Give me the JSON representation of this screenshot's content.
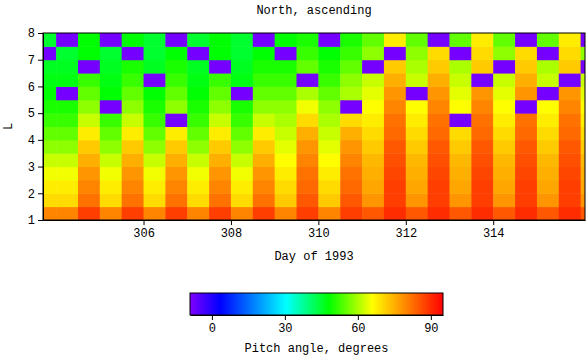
{
  "chart_data": {
    "type": "heatmap",
    "title": "North, ascending",
    "x_label": "Day of 1993",
    "y_label": "L",
    "xlim": [
      303.7,
      316.1
    ],
    "xticks": [
      306,
      308,
      310,
      312,
      314
    ],
    "ylim": [
      1,
      8
    ],
    "yticks": [
      1,
      2,
      3,
      4,
      5,
      6,
      7,
      8
    ],
    "x": [
      303.75,
      304.25,
      304.75,
      305.25,
      305.75,
      306.25,
      306.75,
      307.25,
      307.75,
      308.25,
      308.75,
      309.25,
      309.75,
      310.25,
      310.75,
      311.25,
      311.75,
      312.25,
      312.75,
      313.25,
      313.75,
      314.25,
      314.75,
      315.25,
      315.75,
      316.25
    ],
    "y": [
      1.25,
      1.75,
      2.25,
      2.75,
      3.25,
      3.75,
      4.25,
      4.75,
      5.25,
      5.75,
      6.25,
      6.75,
      7.25,
      7.75
    ],
    "z": [
      [
        80,
        80,
        88,
        80,
        88,
        80,
        88,
        80,
        88,
        80,
        88,
        80,
        88,
        80,
        88,
        85,
        90,
        85,
        90,
        85,
        90,
        85,
        90,
        85,
        90,
        85
      ],
      [
        70,
        70,
        82,
        70,
        82,
        70,
        82,
        70,
        82,
        70,
        82,
        72,
        85,
        72,
        85,
        78,
        88,
        78,
        88,
        78,
        88,
        78,
        88,
        78,
        88,
        78
      ],
      [
        68,
        68,
        80,
        68,
        80,
        68,
        80,
        68,
        80,
        68,
        80,
        70,
        83,
        70,
        83,
        76,
        88,
        76,
        88,
        76,
        88,
        76,
        88,
        76,
        88,
        76
      ],
      [
        65,
        65,
        78,
        65,
        78,
        65,
        78,
        65,
        78,
        65,
        78,
        68,
        82,
        68,
        82,
        75,
        87,
        75,
        87,
        75,
        87,
        75,
        87,
        75,
        87,
        75
      ],
      [
        62,
        62,
        75,
        62,
        75,
        62,
        75,
        62,
        75,
        62,
        75,
        66,
        80,
        66,
        80,
        74,
        86,
        74,
        86,
        74,
        86,
        74,
        86,
        74,
        86,
        74
      ],
      [
        58,
        58,
        72,
        58,
        72,
        58,
        72,
        58,
        72,
        58,
        72,
        64,
        78,
        64,
        78,
        72,
        85,
        72,
        85,
        72,
        85,
        72,
        85,
        72,
        85,
        72
      ],
      [
        55,
        55,
        68,
        55,
        68,
        55,
        68,
        55,
        68,
        55,
        68,
        62,
        75,
        62,
        75,
        70,
        83,
        70,
        83,
        70,
        83,
        70,
        83,
        70,
        83,
        70
      ],
      [
        52,
        52,
        62,
        52,
        62,
        52,
        -8,
        52,
        62,
        52,
        62,
        60,
        70,
        60,
        70,
        68,
        82,
        68,
        82,
        -8,
        82,
        68,
        82,
        68,
        82,
        68
      ],
      [
        50,
        50,
        58,
        -8,
        58,
        50,
        58,
        50,
        58,
        50,
        58,
        58,
        65,
        58,
        -8,
        66,
        80,
        66,
        80,
        66,
        80,
        66,
        -8,
        66,
        80,
        66
      ],
      [
        48,
        -8,
        55,
        48,
        55,
        48,
        55,
        48,
        55,
        -8,
        55,
        55,
        60,
        55,
        60,
        64,
        78,
        -8,
        78,
        64,
        78,
        64,
        78,
        -8,
        78,
        64
      ],
      [
        47,
        47,
        52,
        47,
        52,
        -8,
        52,
        47,
        52,
        47,
        52,
        52,
        -8,
        52,
        58,
        62,
        75,
        62,
        75,
        62,
        -8,
        62,
        75,
        62,
        -8,
        62
      ],
      [
        46,
        46,
        -8,
        46,
        50,
        46,
        50,
        46,
        -8,
        46,
        50,
        50,
        55,
        50,
        55,
        -8,
        72,
        60,
        72,
        60,
        72,
        -8,
        72,
        60,
        72,
        -8
      ],
      [
        -8,
        45,
        48,
        45,
        -8,
        45,
        48,
        -8,
        48,
        45,
        48,
        -8,
        52,
        48,
        52,
        58,
        -8,
        58,
        70,
        -8,
        70,
        58,
        70,
        -8,
        70,
        58
      ],
      [
        45,
        -8,
        48,
        -8,
        48,
        45,
        -8,
        45,
        48,
        45,
        -8,
        48,
        50,
        -8,
        50,
        55,
        68,
        55,
        -8,
        55,
        68,
        55,
        -8,
        55,
        68,
        -8
      ]
    ],
    "colorbar": {
      "label": "Pitch angle, degrees",
      "range": [
        -9,
        95
      ],
      "ticks": [
        0,
        30,
        60,
        90
      ]
    }
  }
}
